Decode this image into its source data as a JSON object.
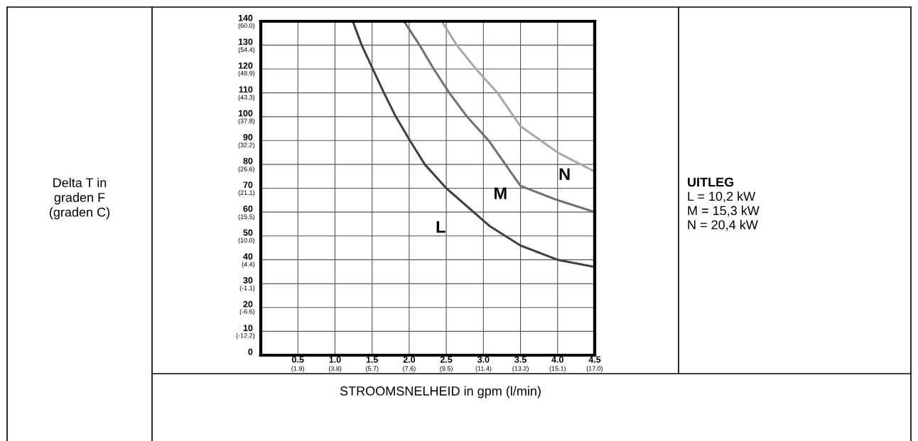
{
  "chart_data": {
    "type": "line",
    "xlabel": "STROOMSNELHEID in gpm (l/min)",
    "series": [
      {
        "name": "L",
        "color": "#404040",
        "x": [
          1.24,
          1.36,
          1.51,
          1.66,
          1.82,
          2.01,
          2.21,
          2.5,
          3.09,
          3.5,
          4.0,
          4.5
        ],
        "values": [
          140,
          130,
          120,
          110,
          100,
          90,
          80,
          70,
          54,
          46,
          40,
          37
        ]
      },
      {
        "name": "M",
        "color": "#707070",
        "x": [
          1.93,
          2.14,
          2.33,
          2.54,
          2.78,
          3.07,
          3.5,
          4.0,
          4.5
        ],
        "values": [
          140,
          130,
          120,
          110,
          100,
          90,
          71,
          65,
          60
        ]
      },
      {
        "name": "N",
        "color": "#a8a8a8",
        "x": [
          2.44,
          2.64,
          2.9,
          3.19,
          3.5,
          4.0,
          4.5
        ],
        "values": [
          140,
          130,
          120,
          110,
          96,
          85,
          77
        ]
      }
    ],
    "xlim": [
      0,
      4.5
    ],
    "ylim": [
      0,
      140
    ],
    "xticks": [
      0.5,
      {
        "value": 1.0,
        "label": "1.0"
      },
      1.5,
      {
        "value": 2.0,
        "label": "2.0"
      },
      2.5,
      {
        "value": 3.0,
        "label": "3.0"
      },
      3.5,
      {
        "value": 4.0,
        "label": "4.0"
      },
      4.5
    ],
    "yticks": [
      0,
      10,
      20,
      30,
      40,
      50,
      60,
      70,
      80,
      90,
      100,
      110,
      120,
      130,
      140
    ],
    "x2lim": [
      0,
      17.03
    ],
    "x2ticks": [
      {
        "value": 1.89,
        "label": "(1.9)"
      },
      {
        "value": 3.79,
        "label": "(3.8)"
      },
      {
        "value": 5.68,
        "label": "(5.7)"
      },
      {
        "value": 7.57,
        "label": "(7.6)"
      },
      {
        "value": 9.46,
        "label": "(9.5)"
      },
      {
        "value": 11.36,
        "label": "(11.4)"
      },
      {
        "value": 13.25,
        "label": "(13.2)"
      },
      {
        "value": 15.14,
        "label": "(15.1)"
      },
      {
        "value": 17.03,
        "label": "(17.0)"
      }
    ],
    "y2lim": [
      -17.8,
      60.0
    ],
    "y2ticks": [
      {
        "value": -12.2,
        "label": "(-12.2)"
      },
      {
        "value": -6.6,
        "label": "(-6.6)"
      },
      {
        "value": -1.1,
        "label": "(-1.1)"
      },
      {
        "value": 4.4,
        "label": "(4.4)"
      },
      {
        "value": 10.0,
        "label": "(10.0)"
      },
      {
        "value": 15.5,
        "label": "(15.5)"
      },
      {
        "value": 21.1,
        "label": "(21.1)"
      },
      {
        "value": 26.6,
        "label": "(26.6)"
      },
      {
        "value": 32.2,
        "label": "(32.2)"
      },
      {
        "value": 37.8,
        "label": "(37.8)"
      },
      {
        "value": 43.3,
        "label": "(43.3)"
      },
      {
        "value": 48.9,
        "label": "(48.9)"
      },
      {
        "value": 54.4,
        "label": "(54.4)"
      },
      {
        "value": 60.0,
        "label": "(60.0)"
      }
    ],
    "grid": true,
    "legend": false,
    "marker": "none",
    "line_style": "solid",
    "annotations": [
      "Delta T in\ngraden F\n(graden C)",
      "UITLEG",
      "L = 10,2 kW\nM = 15,3 kW\nN = 20,4 kW"
    ]
  }
}
